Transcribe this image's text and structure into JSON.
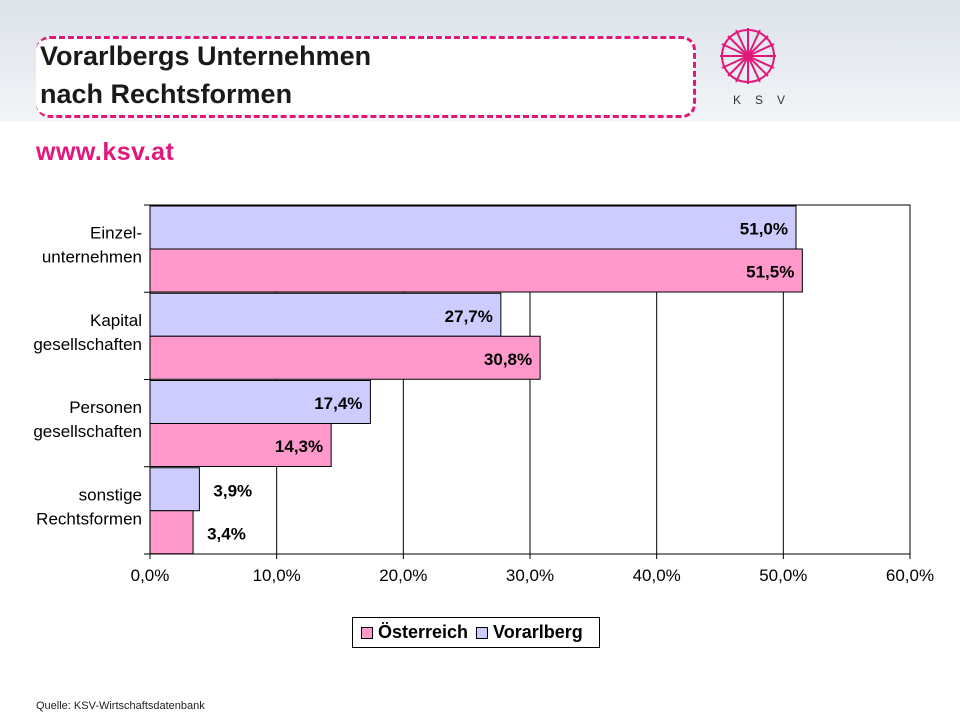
{
  "header": {
    "title_line1": "Vorarlbergs Unternehmen",
    "title_line2": "nach Rechtsformen",
    "url": "www.ksv.at",
    "logo_text": "KSV"
  },
  "colors": {
    "oesterreich": "#ff99cc",
    "vorarlberg": "#ccccff",
    "accent": "#e2177a"
  },
  "chart_data": {
    "type": "bar",
    "orientation": "horizontal",
    "categories": [
      [
        "Einzel-",
        "unternehmen"
      ],
      [
        "Kapital",
        "gesellschaften"
      ],
      [
        "Personen",
        "gesellschaften"
      ],
      [
        "sonstige",
        "Rechtsformen"
      ]
    ],
    "series": [
      {
        "name": "Vorarlberg",
        "values": [
          51.0,
          27.7,
          17.4,
          3.9
        ],
        "labels": [
          "51,0%",
          "27,7%",
          "17,4%",
          "3,9%"
        ]
      },
      {
        "name": "Österreich",
        "values": [
          51.5,
          30.8,
          14.3,
          3.4
        ],
        "labels": [
          "51,5%",
          "30,8%",
          "14,3%",
          "3,4%"
        ]
      }
    ],
    "xlim": [
      0,
      60
    ],
    "x_ticks": [
      "0,0%",
      "10,0%",
      "20,0%",
      "30,0%",
      "40,0%",
      "50,0%",
      "60,0%"
    ],
    "grid": true,
    "legend": {
      "position": "bottom",
      "entries": [
        "Österreich",
        "Vorarlberg"
      ]
    }
  },
  "source": "Quelle: KSV-Wirtschaftsdatenbank"
}
